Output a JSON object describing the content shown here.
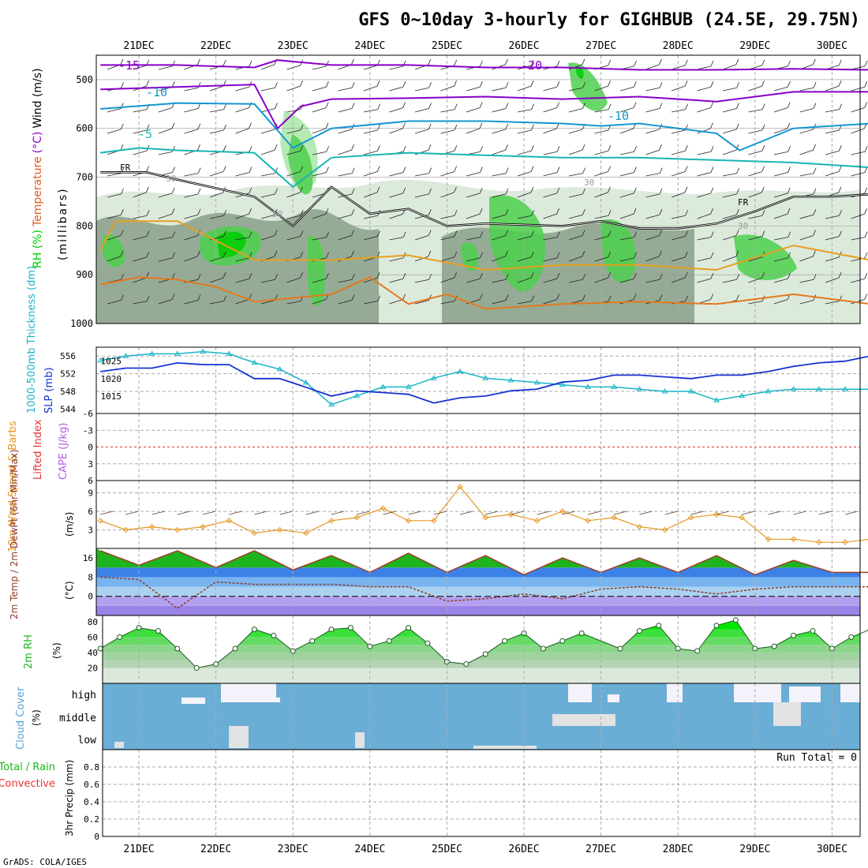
{
  "chart_data": {
    "type": "line",
    "title": "GFS 0~10day 3-hourly for GIGHBUB (24.5E, 29.75N)",
    "footer": "GrADS: COLA/IGES",
    "colors": {
      "green_dark": "#00cc00",
      "green_mid": "#4cd04c",
      "green_light": "#a8e6a8",
      "grey_dark": "#8aa08a",
      "grey_light": "#d6e6d6",
      "purple": "#8800c8",
      "cyan_blue": "#1496d2",
      "teal": "#19b4b4",
      "orange": "#e6a01e",
      "dark_orange": "#e6781e",
      "magenta": "#d2147a",
      "slp_blue": "#1432d2",
      "thick_cyan": "#19b4c8",
      "wind_orange": "#e6961e",
      "temp_green": "#1eb41e",
      "dewpt_brown": "#8c3c28",
      "rh_green": "#00e600",
      "cloud_blue": "#6aaed6",
      "cloud_white": "#f4f2fb",
      "cloud_grey": "#e2e2e2",
      "grid": "#aaaaaa",
      "frame": "#000000"
    },
    "date_ticks": [
      "21DEC",
      "22DEC",
      "23DEC",
      "24DEC",
      "25DEC",
      "26DEC",
      "27DEC",
      "28DEC",
      "29DEC",
      "30DEC"
    ],
    "time_range_days": [
      0,
      10
    ],
    "top_panel": {
      "ylabel_parts": [
        "RH (%)",
        "Temperature",
        "(°C)",
        "Wind (m/s)"
      ],
      "ylabel2": "(millibars)",
      "levels": [
        500,
        600,
        700,
        800,
        900,
        1000
      ],
      "ylim": [
        450,
        1000
      ],
      "contour_labels": [
        "-15",
        "-10",
        "-5",
        "-20",
        "-10",
        "FR",
        "FR",
        "30",
        "50",
        "30",
        "30"
      ],
      "isotherms": [
        {
          "label": "-20",
          "color": "purple",
          "x": [
            0,
            1,
            2,
            2.3,
            3,
            4,
            5,
            6,
            7,
            8,
            9,
            10
          ],
          "y": [
            470,
            470,
            475,
            460,
            470,
            470,
            475,
            475,
            480,
            480,
            478,
            480
          ]
        },
        {
          "label": "-15",
          "color": "purple",
          "x": [
            0,
            1,
            2,
            2.3,
            2.6,
            3,
            4,
            5,
            6,
            7,
            8,
            9,
            10
          ],
          "y": [
            520,
            515,
            510,
            600,
            555,
            540,
            538,
            535,
            540,
            535,
            545,
            525,
            525
          ]
        },
        {
          "label": "-10",
          "color": "cyan_blue",
          "x": [
            0,
            1,
            2,
            2.5,
            3,
            4,
            5,
            6,
            6.5,
            7,
            8,
            8.3,
            9,
            10
          ],
          "y": [
            560,
            548,
            550,
            640,
            600,
            585,
            585,
            590,
            595,
            590,
            610,
            645,
            600,
            590
          ]
        },
        {
          "label": "-5",
          "color": "teal",
          "x": [
            0,
            0.5,
            1,
            2,
            2.5,
            3,
            4,
            5,
            6,
            7,
            8,
            9,
            10
          ],
          "y": [
            650,
            640,
            645,
            650,
            720,
            660,
            650,
            655,
            660,
            660,
            665,
            670,
            680
          ]
        },
        {
          "label": "FR",
          "color": "frame",
          "x": [
            0,
            0.6,
            1,
            2,
            2.5,
            3,
            3.5,
            4,
            4.5,
            5,
            6,
            6.5,
            7,
            7.5,
            8,
            8.5,
            9,
            9.5,
            10
          ],
          "y": [
            690,
            690,
            705,
            740,
            800,
            720,
            775,
            765,
            800,
            795,
            800,
            790,
            805,
            805,
            795,
            770,
            740,
            740,
            735
          ]
        },
        {
          "label": "",
          "color": "orange",
          "x": [
            0,
            0.2,
            1,
            2,
            3,
            4,
            5,
            6,
            7,
            8,
            9,
            10
          ],
          "y": [
            850,
            790,
            790,
            870,
            870,
            860,
            890,
            880,
            880,
            890,
            840,
            870
          ]
        },
        {
          "label": "",
          "color": "dark_orange",
          "x": [
            0,
            0.5,
            1,
            1.5,
            2,
            3,
            3.5,
            4,
            4.5,
            5,
            6,
            7,
            8,
            9,
            10
          ],
          "y": [
            920,
            905,
            910,
            925,
            955,
            940,
            905,
            960,
            940,
            970,
            960,
            955,
            960,
            940,
            960
          ]
        }
      ]
    },
    "slp_panel": {
      "ylabel": "1000-500mb Thickness (dm)",
      "ylabel_slp": "SLP (mb)",
      "y_left_ticks": [
        "556",
        "552",
        "548",
        "544"
      ],
      "y_right_ticks": [
        "1025",
        "1020",
        "1015"
      ],
      "ylim_thickness": [
        543,
        558
      ],
      "ylim_slp": [
        1010,
        1029
      ],
      "x": [
        0,
        0.33,
        0.67,
        1,
        1.33,
        1.67,
        2,
        2.33,
        2.67,
        3,
        3.33,
        3.67,
        4,
        4.33,
        4.67,
        5,
        5.33,
        5.67,
        6,
        6.33,
        6.67,
        7,
        7.33,
        7.67,
        8,
        8.33,
        8.67,
        9,
        9.33,
        9.67,
        10
      ],
      "thickness": [
        555,
        556,
        556.5,
        556.5,
        557,
        556.5,
        554.5,
        553,
        550,
        545,
        547,
        549,
        549,
        551,
        552.5,
        551,
        550.5,
        550,
        549.5,
        549,
        549,
        548.5,
        548,
        548,
        546,
        547,
        548,
        548.5,
        548.5,
        548.5,
        548.5
      ],
      "slp": [
        1022,
        1023,
        1023,
        1024.5,
        1024,
        1024,
        1020,
        1020,
        1017.5,
        1015,
        1016.5,
        1016,
        1015.5,
        1013,
        1014.5,
        1015,
        1016.5,
        1017,
        1019,
        1019.5,
        1021,
        1021,
        1020.5,
        1020,
        1021,
        1021,
        1022,
        1023.5,
        1024.5,
        1025,
        1026.5
      ]
    },
    "cape_panel": {
      "ylabel_li": "Lifted Index",
      "ylabel_cape": "CAPE (J/kg)",
      "y_ticks": [
        "-6",
        "-3",
        "0",
        "3",
        "6"
      ],
      "ylim": [
        -6,
        6
      ],
      "lifted_index_zero": 0
    },
    "wind_panel": {
      "ylabel": "10m Wind Speed & Barbs",
      "ylabel_unit": "(m/s)",
      "y_ticks": [
        "9",
        "6",
        "3"
      ],
      "ylim": [
        0,
        11
      ],
      "x": [
        0,
        0.33,
        0.67,
        1,
        1.33,
        1.67,
        2,
        2.33,
        2.67,
        3,
        3.33,
        3.67,
        4,
        4.33,
        4.67,
        5,
        5.33,
        5.67,
        6,
        6.33,
        6.67,
        7,
        7.33,
        7.67,
        8,
        8.33,
        8.67,
        9,
        9.33,
        9.67,
        10
      ],
      "speed": [
        4.5,
        3,
        3.5,
        3,
        3.5,
        4.5,
        2.5,
        3,
        2.5,
        4.5,
        5,
        6.5,
        4.5,
        4.5,
        10,
        5,
        5.5,
        4.5,
        6,
        4.5,
        5,
        3.5,
        3,
        5,
        5.5,
        5,
        1.5,
        1.5,
        1,
        1,
        1.5
      ]
    },
    "temp_panel": {
      "ylabel": "2m Temp / 2m DewPt (6hr Min/Max)",
      "ylabel_unit": "(°C)",
      "y_ticks": [
        "16",
        "8",
        "0"
      ],
      "ylim": [
        -8,
        20
      ],
      "x": [
        0,
        0.5,
        1,
        1.5,
        2,
        2.5,
        3,
        3.5,
        4,
        4.5,
        5,
        5.5,
        6,
        6.5,
        7,
        7.5,
        8,
        8.5,
        9,
        9.5,
        10
      ],
      "temp": [
        19,
        13,
        19,
        12,
        19,
        11,
        17,
        10,
        18,
        10,
        17,
        9,
        16,
        10,
        16,
        10,
        17,
        9,
        15,
        10,
        10
      ],
      "dewpt": [
        8,
        7,
        -5,
        6,
        5,
        5,
        5,
        4,
        4,
        -2,
        -1,
        1,
        -1,
        3,
        4,
        3,
        1,
        3,
        4,
        4,
        4
      ]
    },
    "rh_panel": {
      "ylabel": "2m RH",
      "ylabel_unit": "(%)",
      "y_ticks": [
        "80",
        "60",
        "40",
        "20"
      ],
      "ylim": [
        0,
        88
      ],
      "x": [
        0,
        0.25,
        0.5,
        0.75,
        1,
        1.25,
        1.5,
        1.75,
        2,
        2.25,
        2.5,
        2.75,
        3,
        3.25,
        3.5,
        3.75,
        4,
        4.25,
        4.5,
        4.75,
        5,
        5.25,
        5.5,
        5.75,
        6,
        6.25,
        6.75,
        7,
        7.25,
        7.5,
        7.75,
        8,
        8.25,
        8.5,
        8.75,
        9,
        9.25,
        9.5,
        9.75,
        10
      ],
      "rh": [
        45,
        60,
        72,
        68,
        45,
        20,
        25,
        45,
        70,
        62,
        42,
        55,
        70,
        72,
        48,
        55,
        72,
        52,
        28,
        25,
        38,
        55,
        65,
        45,
        55,
        65,
        45,
        68,
        75,
        45,
        42,
        75,
        82,
        45,
        48,
        62,
        68,
        45,
        60,
        70
      ]
    },
    "cloud_panel": {
      "ylabel": "Cloud Cover",
      "ylabel_unit": "(%)",
      "rows": [
        "high",
        "middle",
        "low"
      ]
    },
    "precip_panel": {
      "ylabel": "3hr Precip (mm)",
      "legend_total_rain": "Total / Rain",
      "legend_convective": "Convective",
      "run_total_label": "Run Total = 0",
      "y_ticks": [
        "0.8",
        "0.6",
        "0.4",
        "0.2",
        "0"
      ],
      "ylim": [
        0,
        1
      ],
      "values": []
    }
  }
}
